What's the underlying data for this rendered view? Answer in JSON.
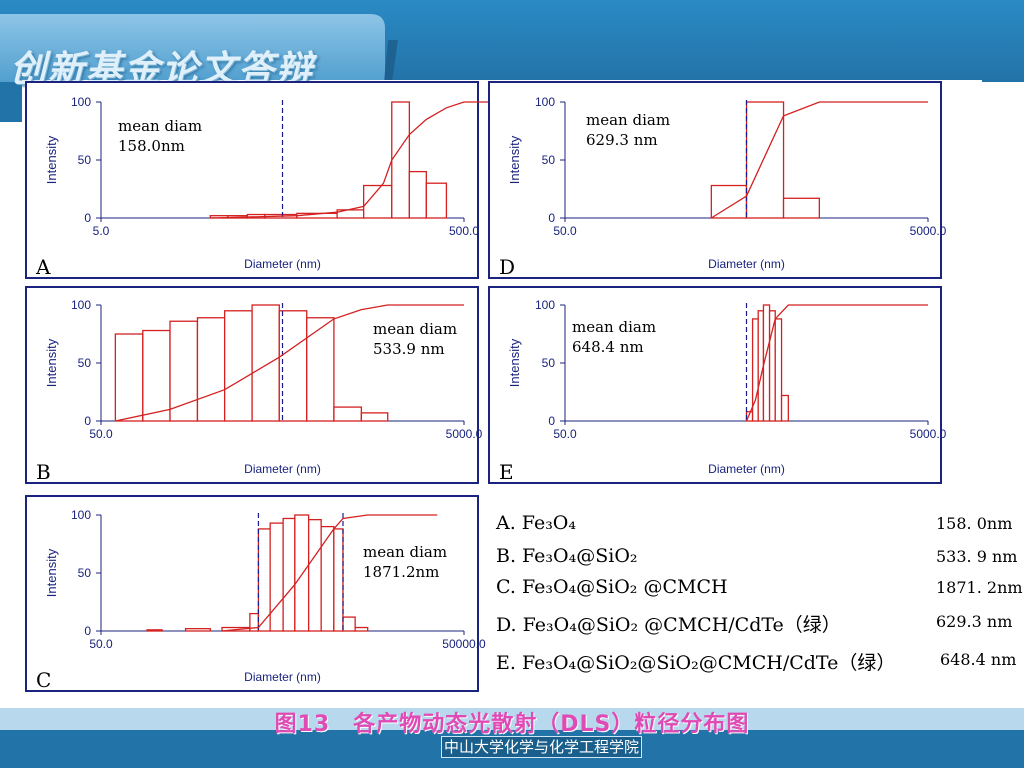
{
  "slide": {
    "title": "创新基金论文答辩",
    "caption": "图13　各产物动态光散射（DLS）粒径分布图",
    "footer": "中山大学化学与化学工程学院",
    "colors": {
      "background_top": "#2a7fb5",
      "background_band": "#5aa7d6",
      "bar_red": "#d42020",
      "mean_line_blue": "#1a1a8c",
      "caption_magenta": "#e04ab4"
    }
  },
  "chart_data": [
    {
      "panel": "A",
      "type": "bar",
      "xscale": "log",
      "xlim": [
        5.0,
        500.0
      ],
      "ylim": [
        0,
        100
      ],
      "x_tick_labels": [
        "5.0",
        "500.0"
      ],
      "y_tick_labels": [
        "0",
        "50",
        "100"
      ],
      "xlabel": "Diameter (nm)",
      "ylabel": "Intensity",
      "annotation": [
        "mean diam",
        "158.0nm"
      ],
      "mean_lines": [
        50
      ],
      "bars": [
        {
          "x0": 20,
          "x1": 25,
          "y": 2
        },
        {
          "x0": 25,
          "x1": 32,
          "y": 2
        },
        {
          "x0": 32,
          "x1": 40,
          "y": 3
        },
        {
          "x0": 40,
          "x1": 60,
          "y": 3
        },
        {
          "x0": 60,
          "x1": 100,
          "y": 4
        },
        {
          "x0": 100,
          "x1": 140,
          "y": 7
        },
        {
          "x0": 140,
          "x1": 200,
          "y": 28
        },
        {
          "x0": 200,
          "x1": 250,
          "y": 100
        },
        {
          "x0": 250,
          "x1": 310,
          "y": 40
        },
        {
          "x0": 310,
          "x1": 400,
          "y": 30
        }
      ],
      "cumulative": [
        [
          20,
          0
        ],
        [
          60,
          2
        ],
        [
          100,
          5
        ],
        [
          140,
          10
        ],
        [
          180,
          30
        ],
        [
          200,
          50
        ],
        [
          250,
          72
        ],
        [
          310,
          85
        ],
        [
          400,
          95
        ],
        [
          500,
          100
        ],
        [
          1000,
          100
        ]
      ]
    },
    {
      "panel": "D",
      "type": "bar",
      "xscale": "log",
      "xlim": [
        50.0,
        5000.0
      ],
      "ylim": [
        0,
        100
      ],
      "x_tick_labels": [
        "50.0",
        "5000.0"
      ],
      "y_tick_labels": [
        "0",
        "50",
        "100"
      ],
      "xlabel": "Diameter (nm)",
      "ylabel": "Intensity",
      "annotation": [
        "mean diam",
        "629.3 nm"
      ],
      "mean_lines": [
        500
      ],
      "bars": [
        {
          "x0": 320,
          "x1": 500,
          "y": 28
        },
        {
          "x0": 500,
          "x1": 800,
          "y": 100
        },
        {
          "x0": 800,
          "x1": 1260,
          "y": 17
        }
      ],
      "cumulative": [
        [
          320,
          0
        ],
        [
          500,
          19
        ],
        [
          800,
          88
        ],
        [
          1260,
          100
        ],
        [
          5000,
          100
        ]
      ]
    },
    {
      "panel": "B",
      "type": "bar",
      "xscale": "log",
      "xlim": [
        50.0,
        5000.0
      ],
      "ylim": [
        0,
        100
      ],
      "x_tick_labels": [
        "50.0",
        "5000.0"
      ],
      "y_tick_labels": [
        "0",
        "50",
        "100"
      ],
      "xlabel": "Diameter (nm)",
      "ylabel": "Intensity",
      "annotation": [
        "mean diam",
        "533.9 nm"
      ],
      "mean_lines": [
        500
      ],
      "bars": [
        {
          "x0": 60,
          "x1": 85,
          "y": 75
        },
        {
          "x0": 85,
          "x1": 120,
          "y": 78
        },
        {
          "x0": 120,
          "x1": 170,
          "y": 86
        },
        {
          "x0": 170,
          "x1": 240,
          "y": 89
        },
        {
          "x0": 240,
          "x1": 340,
          "y": 95
        },
        {
          "x0": 340,
          "x1": 480,
          "y": 100
        },
        {
          "x0": 480,
          "x1": 680,
          "y": 95
        },
        {
          "x0": 680,
          "x1": 960,
          "y": 89
        },
        {
          "x0": 960,
          "x1": 1360,
          "y": 12
        },
        {
          "x0": 1360,
          "x1": 1900,
          "y": 7
        }
      ],
      "cumulative": [
        [
          60,
          0
        ],
        [
          120,
          10
        ],
        [
          240,
          27
        ],
        [
          480,
          55
        ],
        [
          960,
          88
        ],
        [
          1360,
          96
        ],
        [
          1900,
          100
        ],
        [
          5000,
          100
        ]
      ]
    },
    {
      "panel": "E",
      "type": "bar",
      "xscale": "log",
      "xlim": [
        50.0,
        5000.0
      ],
      "ylim": [
        0,
        100
      ],
      "x_tick_labels": [
        "50.0",
        "5000.0"
      ],
      "y_tick_labels": [
        "0",
        "50",
        "100"
      ],
      "xlabel": "Diameter (nm)",
      "ylabel": "Intensity",
      "annotation": [
        "mean diam",
        "648.4 nm"
      ],
      "mean_lines": [
        500
      ],
      "bars": [
        {
          "x0": 500,
          "x1": 540,
          "y": 8
        },
        {
          "x0": 540,
          "x1": 580,
          "y": 88
        },
        {
          "x0": 580,
          "x1": 620,
          "y": 95
        },
        {
          "x0": 620,
          "x1": 670,
          "y": 100
        },
        {
          "x0": 670,
          "x1": 720,
          "y": 95
        },
        {
          "x0": 720,
          "x1": 780,
          "y": 88
        },
        {
          "x0": 780,
          "x1": 850,
          "y": 22
        }
      ],
      "cumulative": [
        [
          500,
          0
        ],
        [
          560,
          18
        ],
        [
          620,
          48
        ],
        [
          720,
          88
        ],
        [
          850,
          100
        ],
        [
          5000,
          100
        ]
      ]
    },
    {
      "panel": "C",
      "type": "bar",
      "xscale": "log",
      "xlim": [
        50.0,
        50000.0
      ],
      "ylim": [
        0,
        100
      ],
      "x_tick_labels": [
        "50.0",
        "50000.0"
      ],
      "y_tick_labels": [
        "0",
        "50",
        "100"
      ],
      "xlabel": "Diameter (nm)",
      "ylabel": "Intensity",
      "annotation": [
        "mean diam",
        "1871.2nm"
      ],
      "mean_lines": [
        1000,
        5000
      ],
      "bars": [
        {
          "x0": 120,
          "x1": 160,
          "y": 1
        },
        {
          "x0": 250,
          "x1": 400,
          "y": 2
        },
        {
          "x0": 500,
          "x1": 850,
          "y": 3
        },
        {
          "x0": 850,
          "x1": 1000,
          "y": 15
        },
        {
          "x0": 1000,
          "x1": 1250,
          "y": 88
        },
        {
          "x0": 1250,
          "x1": 1600,
          "y": 93
        },
        {
          "x0": 1600,
          "x1": 2000,
          "y": 97
        },
        {
          "x0": 2000,
          "x1": 2600,
          "y": 100
        },
        {
          "x0": 2600,
          "x1": 3300,
          "y": 96
        },
        {
          "x0": 3300,
          "x1": 4200,
          "y": 90
        },
        {
          "x0": 4200,
          "x1": 5000,
          "y": 88
        },
        {
          "x0": 5000,
          "x1": 6300,
          "y": 12
        },
        {
          "x0": 6300,
          "x1": 8000,
          "y": 3
        }
      ],
      "cumulative": [
        [
          500,
          0
        ],
        [
          1000,
          3
        ],
        [
          2000,
          40
        ],
        [
          4200,
          88
        ],
        [
          5000,
          97
        ],
        [
          8000,
          100
        ],
        [
          30000,
          100
        ]
      ]
    }
  ],
  "legend": [
    {
      "label": "A.  Fe₃O₄",
      "value": "158. 0nm"
    },
    {
      "label": "B.    Fe₃O₄@SiO₂",
      "value": "533. 9  nm"
    },
    {
      "label": "C.  Fe₃O₄@SiO₂ @CMCH",
      "value": "1871. 2nm"
    },
    {
      "label": "D.  Fe₃O₄@SiO₂ @CMCH/CdTe（绿）",
      "value": "629.3 nm"
    },
    {
      "label": "E.  Fe₃O₄@SiO₂@SiO₂@CMCH/CdTe（绿）",
      "value": "648.4 nm"
    }
  ]
}
